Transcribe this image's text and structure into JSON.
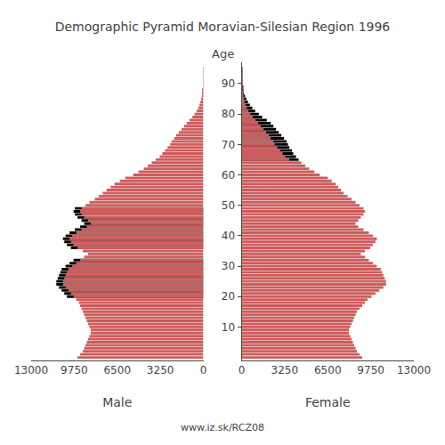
{
  "chart_data": {
    "type": "bar",
    "orientation": "horizontal",
    "title": "Demographic Pyramid Moravian-Silesian Region 1996",
    "xlabel": "Male",
    "x2label": "Female",
    "ylabel": "Age",
    "annotations": [
      "www.iz.sk/RCZ08"
    ],
    "grid": false,
    "categories": [
      0,
      1,
      2,
      3,
      4,
      5,
      6,
      7,
      8,
      9,
      10,
      11,
      12,
      13,
      14,
      15,
      16,
      17,
      18,
      19,
      20,
      21,
      22,
      23,
      24,
      25,
      26,
      27,
      28,
      29,
      30,
      31,
      32,
      33,
      34,
      35,
      36,
      37,
      38,
      39,
      40,
      41,
      42,
      43,
      44,
      45,
      46,
      47,
      48,
      49,
      50,
      51,
      52,
      53,
      54,
      55,
      56,
      57,
      58,
      59,
      60,
      61,
      62,
      63,
      64,
      65,
      66,
      67,
      68,
      69,
      70,
      71,
      72,
      73,
      74,
      75,
      76,
      77,
      78,
      79,
      80,
      81,
      82,
      83,
      84,
      85,
      86,
      87,
      88,
      89,
      90,
      91,
      92,
      93,
      94,
      95
    ],
    "ylim": [
      -1,
      97
    ],
    "yticks": [
      10,
      20,
      30,
      40,
      50,
      60,
      70,
      80,
      90
    ],
    "xlim": [
      13000,
      0
    ],
    "xticks": [
      0,
      3250,
      6500,
      9750,
      13000
    ],
    "x2lim": [
      0,
      13000
    ],
    "x2ticks": [
      0,
      3250,
      6500,
      9750,
      13000
    ],
    "series": [
      {
        "axis": "x",
        "color": "#000000",
        "values": [
          null,
          null,
          null,
          null,
          null,
          null,
          null,
          null,
          null,
          null,
          null,
          null,
          null,
          null,
          null,
          null,
          null,
          null,
          null,
          null,
          10300,
          10500,
          10700,
          10900,
          11100,
          11100,
          11000,
          10900,
          10800,
          10700,
          10400,
          10100,
          9800,
          null,
          null,
          null,
          10000,
          10300,
          10500,
          10600,
          10400,
          10100,
          9700,
          9300,
          9000,
          9200,
          9500,
          9700,
          9800,
          9700,
          null,
          null,
          null,
          null,
          null,
          null,
          null,
          null,
          null,
          null,
          null,
          null,
          null,
          null,
          null,
          null,
          null,
          null,
          null,
          null,
          null,
          null,
          null,
          null,
          null,
          null,
          null,
          null,
          null,
          null,
          null,
          null,
          null,
          null,
          null,
          null,
          null,
          null,
          null,
          null,
          null,
          null,
          null,
          null,
          null,
          null
        ]
      },
      {
        "axis": "x",
        "color": "#CD5C5C",
        "values": [
          9500,
          9300,
          9100,
          9000,
          8900,
          8800,
          8700,
          8600,
          8500,
          8500,
          8600,
          8700,
          8800,
          8900,
          9000,
          9100,
          9200,
          9300,
          9400,
          9600,
          9800,
          10000,
          10200,
          10400,
          10600,
          10600,
          10500,
          10400,
          10300,
          10200,
          9900,
          9600,
          9300,
          9000,
          8700,
          9100,
          9500,
          9800,
          10000,
          10100,
          9900,
          9600,
          9200,
          8800,
          8500,
          8700,
          9000,
          9200,
          9300,
          9200,
          8900,
          8600,
          8200,
          7900,
          7600,
          7300,
          7000,
          6700,
          6300,
          5900,
          5300,
          4900,
          4500,
          4200,
          3900,
          3600,
          3300,
          3100,
          2900,
          2700,
          2500,
          2400,
          2200,
          2050,
          1850,
          1650,
          1450,
          1250,
          1050,
          830,
          670,
          510,
          390,
          295,
          225,
          165,
          115,
          78,
          52,
          32,
          21,
          13,
          7,
          4,
          2,
          1
        ]
      },
      {
        "axis": "x2",
        "color": "#000000",
        "values": [
          null,
          null,
          null,
          null,
          null,
          null,
          null,
          null,
          null,
          null,
          null,
          null,
          null,
          null,
          null,
          null,
          null,
          null,
          null,
          null,
          null,
          null,
          null,
          null,
          null,
          null,
          null,
          null,
          null,
          null,
          null,
          null,
          null,
          null,
          null,
          null,
          null,
          null,
          null,
          null,
          null,
          null,
          null,
          null,
          null,
          null,
          null,
          null,
          null,
          null,
          null,
          null,
          null,
          null,
          null,
          null,
          null,
          null,
          null,
          null,
          null,
          null,
          null,
          null,
          null,
          4300,
          4100,
          3900,
          3800,
          3600,
          3500,
          3400,
          3200,
          3000,
          2800,
          2600,
          2400,
          2200,
          1900,
          1550,
          1300,
          1020,
          810,
          625,
          475,
          355,
          250,
          170,
          110,
          68,
          43,
          25,
          15,
          8,
          4,
          1
        ]
      },
      {
        "axis": "x2",
        "color": "#CD5C5C",
        "values": [
          9100,
          8900,
          8700,
          8600,
          8500,
          8400,
          8300,
          8200,
          8100,
          8100,
          8200,
          8300,
          8400,
          8500,
          8600,
          8700,
          8900,
          9100,
          9300,
          9500,
          9800,
          10100,
          10400,
          10700,
          10900,
          10900,
          10800,
          10700,
          10600,
          10500,
          10200,
          9900,
          9600,
          9300,
          9000,
          9300,
          9700,
          9900,
          10100,
          10200,
          9900,
          9600,
          9200,
          8800,
          8600,
          8800,
          9000,
          9200,
          9300,
          9200,
          8900,
          8600,
          8300,
          8000,
          7700,
          7500,
          7300,
          7100,
          6800,
          6500,
          5900,
          5500,
          5100,
          4800,
          4500,
          3600,
          3300,
          3100,
          2900,
          2700,
          2500,
          2400,
          2200,
          2050,
          1850,
          1650,
          1450,
          1250,
          1050,
          830,
          670,
          510,
          390,
          295,
          225,
          165,
          115,
          78,
          52,
          32,
          21,
          13,
          7,
          4,
          2,
          1
        ]
      }
    ]
  }
}
